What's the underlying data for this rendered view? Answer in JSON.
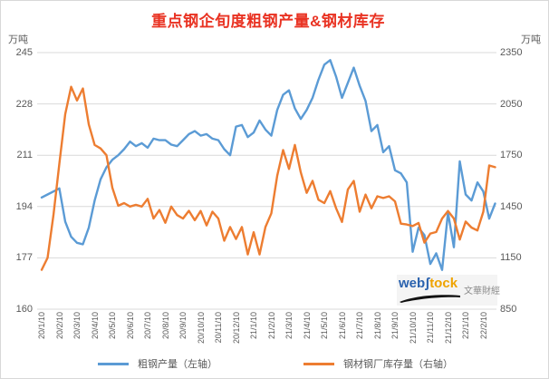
{
  "title": "重点钢企旬度粗钢产量&钢材库存",
  "title_color": "#e93323",
  "left_axis": {
    "unit": "万吨",
    "ticks": [
      245,
      228,
      211,
      194,
      177,
      160
    ],
    "min": 160,
    "max": 245
  },
  "right_axis": {
    "unit": "万吨",
    "ticks": [
      2350,
      2050,
      1750,
      1450,
      1150,
      850
    ],
    "min": 850,
    "max": 2350
  },
  "legend": [
    {
      "label": "粗钢产量（左轴）",
      "color": "#5b9bd5"
    },
    {
      "label": "钢材钢厂库存量（右轴）",
      "color": "#ed7d31"
    }
  ],
  "watermark": {
    "web": "web",
    "s": "ʃ",
    "tock": "tock",
    "suffix": "文華財經"
  },
  "chart_data": {
    "type": "line",
    "title": "重点钢企旬度粗钢产量&钢材库存",
    "x_labels": [
      "20/1/10",
      "20/2/10",
      "20/3/10",
      "20/4/10",
      "20/5/10",
      "20/6/10",
      "20/7/10",
      "20/8/10",
      "20/9/10",
      "20/10/10",
      "20/11/10",
      "20/12/10",
      "21/1/10",
      "21/2/10",
      "21/3/10",
      "21/4/10",
      "21/5/10",
      "21/6/10",
      "21/7/10",
      "21/8/10",
      "21/9/10",
      "21/10/10",
      "21/11/10",
      "21/12/10",
      "22/1/10",
      "22/2/10"
    ],
    "points_per_label": 3,
    "grid": true,
    "legend_position": "bottom",
    "series": [
      {
        "name": "粗钢产量（左轴）",
        "axis": "left",
        "color": "#5b9bd5",
        "ylim": [
          160,
          245
        ],
        "values": [
          197,
          198,
          199,
          200,
          189,
          184,
          182,
          181.5,
          187,
          196,
          203,
          207,
          209.5,
          211,
          213,
          215.5,
          214,
          215,
          213.5,
          216.5,
          216,
          216,
          214.5,
          214,
          216,
          218,
          219,
          217.5,
          218,
          216.5,
          216,
          213,
          211,
          220.5,
          221,
          217,
          218.5,
          222.5,
          219.5,
          217.5,
          226,
          231,
          232.5,
          226.5,
          223,
          226,
          230,
          236,
          241,
          242.5,
          237,
          230,
          235,
          240,
          234,
          229,
          219,
          221,
          212,
          214,
          206,
          205,
          202,
          179,
          187,
          184.5,
          175,
          178.5,
          173,
          192,
          180.5,
          209,
          198,
          196,
          202,
          199,
          190,
          195
        ]
      },
      {
        "name": "钢材钢厂库存量（右轴）",
        "axis": "right",
        "color": "#ed7d31",
        "ylim": [
          850,
          2350
        ],
        "values": [
          1080,
          1150,
          1400,
          1700,
          1990,
          2150,
          2070,
          2140,
          1930,
          1810,
          1790,
          1750,
          1560,
          1455,
          1470,
          1450,
          1460,
          1450,
          1495,
          1380,
          1430,
          1355,
          1450,
          1400,
          1380,
          1425,
          1370,
          1424,
          1340,
          1420,
          1380,
          1250,
          1330,
          1260,
          1330,
          1170,
          1300,
          1170,
          1330,
          1410,
          1630,
          1780,
          1670,
          1810,
          1650,
          1530,
          1600,
          1490,
          1470,
          1540,
          1440,
          1360,
          1550,
          1600,
          1420,
          1520,
          1440,
          1510,
          1500,
          1510,
          1480,
          1350,
          1345,
          1336,
          1354,
          1239,
          1292,
          1301,
          1380,
          1424,
          1380,
          1257,
          1362,
          1327,
          1310,
          1420,
          1690,
          1680
        ]
      }
    ]
  }
}
